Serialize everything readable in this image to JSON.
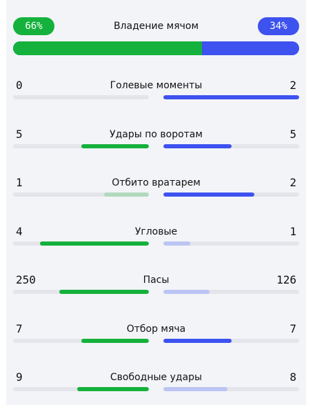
{
  "possession": {
    "title": "Владение мячом",
    "home_label": "66%",
    "away_label": "34%",
    "home_fraction": 0.66,
    "colors": {
      "home": "#14b13c",
      "away": "#3d52ef"
    }
  },
  "stats": [
    {
      "label": "Голевые моменты",
      "home": "0",
      "away": "2",
      "home_fraction": 0.0,
      "away_fraction": 1.0,
      "home_leads": false,
      "away_leads": true
    },
    {
      "label": "Удары по воротам",
      "home": "5",
      "away": "5",
      "home_fraction": 0.5,
      "away_fraction": 0.5,
      "home_leads": true,
      "away_leads": true
    },
    {
      "label": "Отбито вратарем",
      "home": "1",
      "away": "2",
      "home_fraction": 0.33,
      "away_fraction": 0.67,
      "home_leads": false,
      "away_leads": true
    },
    {
      "label": "Угловые",
      "home": "4",
      "away": "1",
      "home_fraction": 0.8,
      "away_fraction": 0.2,
      "home_leads": true,
      "away_leads": false
    },
    {
      "label": "Пасы",
      "home": "250",
      "away": "126",
      "home_fraction": 0.66,
      "away_fraction": 0.34,
      "home_leads": true,
      "away_leads": false
    },
    {
      "label": "Отбор мяча",
      "home": "7",
      "away": "7",
      "home_fraction": 0.5,
      "away_fraction": 0.5,
      "home_leads": true,
      "away_leads": true
    },
    {
      "label": "Свободные удары",
      "home": "9",
      "away": "8",
      "home_fraction": 0.53,
      "away_fraction": 0.47,
      "home_leads": true,
      "away_leads": false
    }
  ]
}
